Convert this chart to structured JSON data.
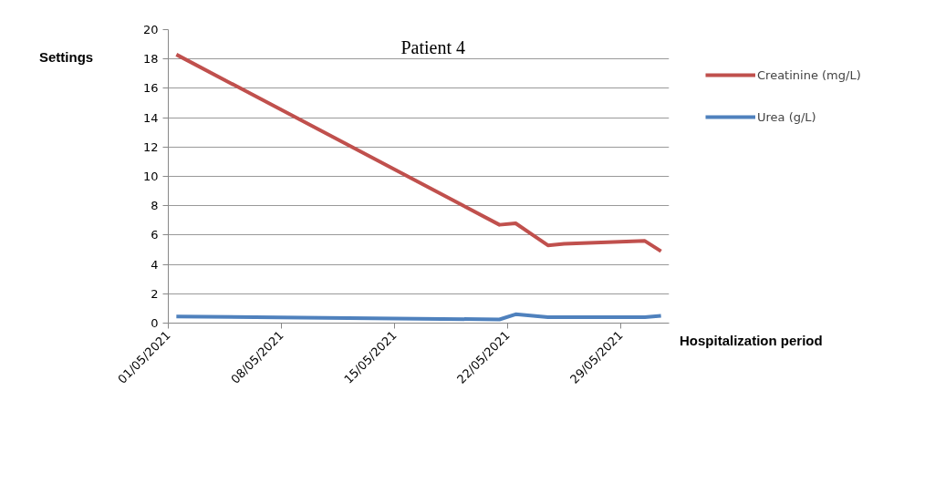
{
  "chart_data": {
    "type": "line",
    "title": "Patient 4",
    "xlabel": "Hospitalization period",
    "ylabel": "Settings",
    "x": [
      "2021-05-01T12:00",
      "2021-05-21T12:00",
      "2021-05-22T12:00",
      "2021-05-24T12:00",
      "2021-05-25T12:00",
      "2021-05-30T12:00",
      "2021-05-31T12:00"
    ],
    "series": [
      {
        "name": "Creatinine (mg/L)",
        "color": "#c0504d",
        "values": [
          18.3,
          6.7,
          6.8,
          5.3,
          5.4,
          5.6,
          4.9
        ]
      },
      {
        "name": "Urea (g/L)",
        "color": "#4f81bd",
        "values": [
          0.45,
          0.25,
          0.6,
          0.4,
          0.4,
          0.4,
          0.5
        ]
      }
    ],
    "xlim": [
      "2021-05-01",
      "2021-06-01"
    ],
    "xticks": [
      {
        "value": "2021-05-01",
        "label": "01/05/2021"
      },
      {
        "value": "2021-05-08",
        "label": "08/05/2021"
      },
      {
        "value": "2021-05-15",
        "label": "15/05/2021"
      },
      {
        "value": "2021-05-22",
        "label": "22/05/2021"
      },
      {
        "value": "2021-05-29",
        "label": "29/05/2021"
      }
    ],
    "ylim": [
      0,
      20
    ],
    "yticks": [
      0,
      2,
      4,
      6,
      8,
      10,
      12,
      14,
      16,
      18,
      20
    ],
    "grid": "y",
    "legend": "right",
    "marker": "none",
    "line_style": "solid"
  }
}
